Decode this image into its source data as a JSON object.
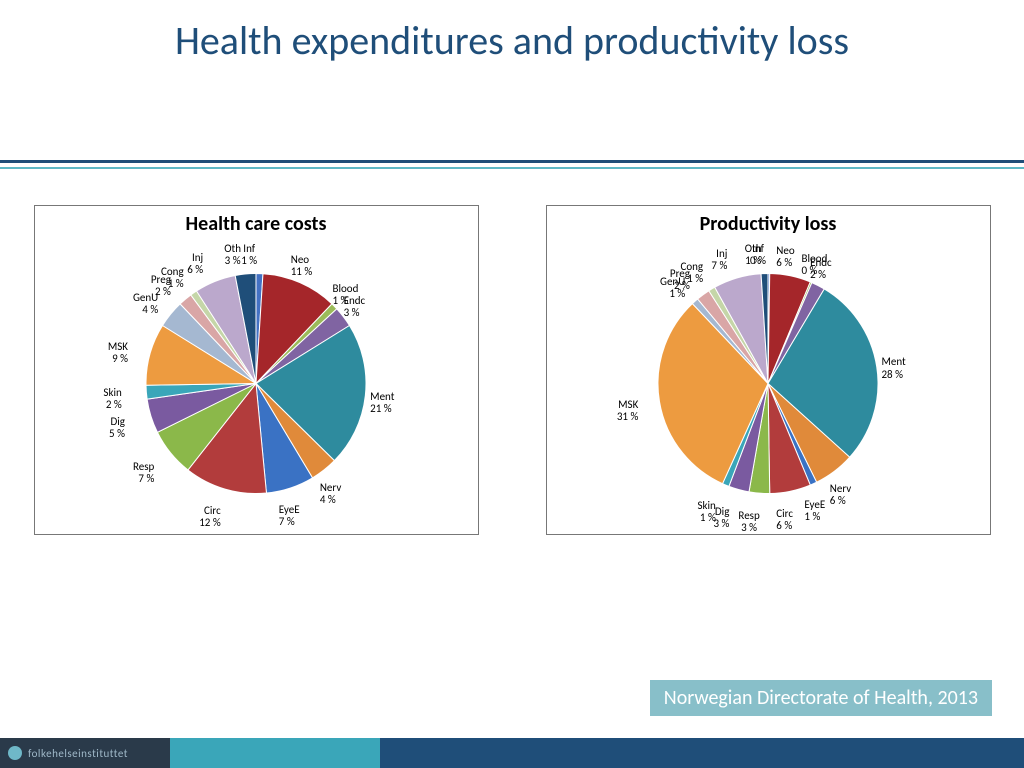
{
  "title": "Health expenditures and productivity loss",
  "source": "Norwegian Directorate of Health, 2013",
  "footer_logo_text": "folkehelseinstituttet",
  "title_color": "#1f4e79",
  "rule1_color": "#1f4e79",
  "rule2_color": "#5eb9c6",
  "source_bg": "#88bfc9",
  "footer_bg": "#1f4e79",
  "footer_seg1_bg": "#2a3a4a",
  "footer_seg2_bg": "#3aa6b9",
  "chart1": {
    "type": "pie",
    "title": "Health care costs",
    "title_fontsize": 20,
    "label_fontsize": 11,
    "radius": 110,
    "border_color": "#777777",
    "slices": [
      {
        "label": "Inf",
        "pct": 1,
        "color": "#4472c4"
      },
      {
        "label": "Neo",
        "pct": 11,
        "color": "#a5262a"
      },
      {
        "label": "Blood",
        "pct": 1,
        "color": "#9bbb59"
      },
      {
        "label": "Endc",
        "pct": 3,
        "color": "#8064a2"
      },
      {
        "label": "Ment",
        "pct": 21,
        "color": "#2e8b9e"
      },
      {
        "label": "Nerv",
        "pct": 4,
        "color": "#e08a3a"
      },
      {
        "label": "EyeE",
        "pct": 7,
        "color": "#3a72c4"
      },
      {
        "label": "Circ",
        "pct": 12,
        "color": "#b23c3c"
      },
      {
        "label": "Resp",
        "pct": 7,
        "color": "#8bb84a"
      },
      {
        "label": "Dig",
        "pct": 5,
        "color": "#7a5aa0"
      },
      {
        "label": "Skin",
        "pct": 2,
        "color": "#3aa6b9"
      },
      {
        "label": "MSK",
        "pct": 9,
        "color": "#ed9b40"
      },
      {
        "label": "GenU",
        "pct": 4,
        "color": "#a5b8d1"
      },
      {
        "label": "Preg",
        "pct": 2,
        "color": "#d9a6a6"
      },
      {
        "label": "Cong",
        "pct": 1,
        "color": "#c5d6a8"
      },
      {
        "label": "Inj",
        "pct": 6,
        "color": "#bba8cc"
      },
      {
        "label": "Oth",
        "pct": 3,
        "color": "#1f4e79"
      }
    ]
  },
  "chart2": {
    "type": "pie",
    "title": "Productivity loss",
    "title_fontsize": 20,
    "label_fontsize": 11,
    "radius": 110,
    "border_color": "#777777",
    "slices": [
      {
        "label": "Inf",
        "pct": 0,
        "color": "#4472c4"
      },
      {
        "label": "Neo",
        "pct": 6,
        "color": "#a5262a"
      },
      {
        "label": "Blood",
        "pct": 0,
        "color": "#9bbb59"
      },
      {
        "label": "Endc",
        "pct": 2,
        "color": "#8064a2"
      },
      {
        "label": "Ment",
        "pct": 28,
        "color": "#2e8b9e"
      },
      {
        "label": "Nerv",
        "pct": 6,
        "color": "#e08a3a"
      },
      {
        "label": "EyeE",
        "pct": 1,
        "color": "#3a72c4"
      },
      {
        "label": "Circ",
        "pct": 6,
        "color": "#b23c3c"
      },
      {
        "label": "Resp",
        "pct": 3,
        "color": "#8bb84a"
      },
      {
        "label": "Dig",
        "pct": 3,
        "color": "#7a5aa0"
      },
      {
        "label": "Skin",
        "pct": 1,
        "color": "#3aa6b9"
      },
      {
        "label": "MSK",
        "pct": 31,
        "color": "#ed9b40"
      },
      {
        "label": "GenU",
        "pct": 1,
        "color": "#a5b8d1"
      },
      {
        "label": "Preg",
        "pct": 2,
        "color": "#d9a6a6"
      },
      {
        "label": "Cong",
        "pct": 1,
        "color": "#c5d6a8"
      },
      {
        "label": "Inj",
        "pct": 7,
        "color": "#bba8cc"
      },
      {
        "label": "Oth",
        "pct": 1,
        "color": "#1f4e79"
      }
    ]
  }
}
